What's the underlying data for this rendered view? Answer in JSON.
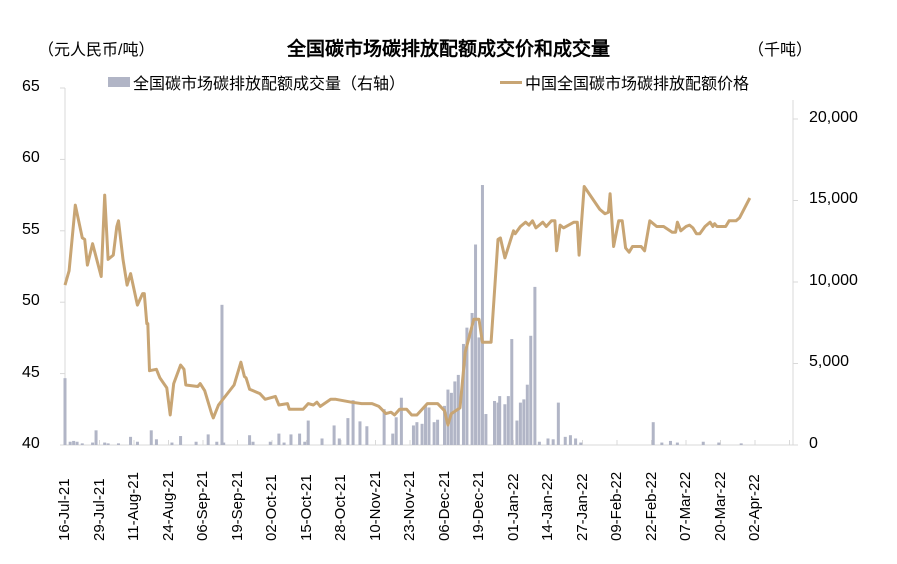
{
  "title": "全国碳市场碳排放配额成交价和成交量",
  "unit_left": "（元人民币/吨）",
  "unit_right": "（千吨）",
  "legend": {
    "bar": "全国碳市场碳排放配额成交量（右轴）",
    "line": "中国全国碳市场碳排放配额价格"
  },
  "colors": {
    "bar": "#b1b5c6",
    "line": "#c8a574",
    "axis": "#d9d9d9"
  },
  "left_axis": {
    "ticks": [
      "65",
      "60",
      "55",
      "50",
      "45",
      "40"
    ]
  },
  "right_axis": {
    "ticks": [
      "20,000",
      "15,000",
      "10,000",
      "5,000",
      "0"
    ]
  },
  "x_axis": {
    "ticks": [
      "16-Jul-21",
      "29-Jul-21",
      "11-Aug-21",
      "24-Aug-21",
      "06-Sep-21",
      "19-Sep-21",
      "02-Oct-21",
      "15-Oct-21",
      "28-Oct-21",
      "10-Nov-21",
      "23-Nov-21",
      "06-Dec-21",
      "19-Dec-21",
      "01-Jan-22",
      "14-Jan-22",
      "27-Jan-22",
      "09-Feb-22",
      "22-Feb-22",
      "07-Mar-22",
      "20-Mar-22",
      "02-Apr-22"
    ]
  },
  "chart_data": {
    "type": "bar+line",
    "title": "全国碳市场碳排放配额成交价和成交量",
    "ylabel_left": "元人民币/吨",
    "ylabel_right": "千吨",
    "ylim_left": [
      40,
      65
    ],
    "ylim_right": [
      0,
      20000
    ],
    "grid": false,
    "legend_position": "top",
    "categories": [
      "16-Jul-21",
      "29-Jul-21",
      "11-Aug-21",
      "24-Aug-21",
      "06-Sep-21",
      "19-Sep-21",
      "02-Oct-21",
      "15-Oct-21",
      "28-Oct-21",
      "10-Nov-21",
      "23-Nov-21",
      "06-Dec-21",
      "19-Dec-21",
      "01-Jan-22",
      "14-Jan-22",
      "27-Jan-22",
      "09-Feb-22",
      "22-Feb-22",
      "07-Mar-22",
      "20-Mar-22",
      "02-Apr-22"
    ],
    "series": [
      {
        "name": "中国全国碳市场碳排放配额价格",
        "type": "line",
        "axis": "left",
        "points": [
          [
            0,
            51.2
          ],
          [
            0.12,
            52.2
          ],
          [
            0.3,
            56.8
          ],
          [
            0.5,
            54.5
          ],
          [
            0.57,
            54.4
          ],
          [
            0.65,
            52.6
          ],
          [
            0.8,
            54.1
          ],
          [
            1.05,
            51.8
          ],
          [
            1.15,
            57.5
          ],
          [
            1.25,
            53.0
          ],
          [
            1.4,
            53.3
          ],
          [
            1.5,
            55.3
          ],
          [
            1.55,
            55.7
          ],
          [
            1.68,
            53.0
          ],
          [
            1.8,
            51.2
          ],
          [
            1.9,
            52.0
          ],
          [
            2.1,
            49.8
          ],
          [
            2.25,
            50.6
          ],
          [
            2.3,
            50.6
          ],
          [
            2.37,
            48.5
          ],
          [
            2.4,
            48.5
          ],
          [
            2.45,
            45.2
          ],
          [
            2.65,
            45.3
          ],
          [
            2.75,
            44.7
          ],
          [
            2.95,
            44.0
          ],
          [
            3.05,
            42.1
          ],
          [
            3.15,
            44.3
          ],
          [
            3.35,
            45.6
          ],
          [
            3.45,
            45.3
          ],
          [
            3.5,
            44.2
          ],
          [
            3.85,
            44.1
          ],
          [
            3.92,
            44.3
          ],
          [
            4.05,
            43.8
          ],
          [
            4.25,
            42.2
          ],
          [
            4.3,
            41.9
          ],
          [
            4.45,
            42.8
          ],
          [
            4.9,
            44.2
          ],
          [
            5.1,
            45.8
          ],
          [
            5.2,
            44.8
          ],
          [
            5.25,
            44.7
          ],
          [
            5.35,
            43.9
          ],
          [
            5.65,
            43.6
          ],
          [
            5.8,
            43.2
          ],
          [
            6.1,
            43.4
          ],
          [
            6.2,
            42.8
          ],
          [
            6.45,
            42.9
          ],
          [
            6.5,
            42.5
          ],
          [
            6.9,
            42.5
          ],
          [
            7.05,
            42.9
          ],
          [
            7.2,
            42.8
          ],
          [
            7.3,
            43.0
          ],
          [
            7.4,
            42.7
          ],
          [
            7.7,
            43.2
          ],
          [
            7.85,
            43.2
          ],
          [
            8.3,
            43.0
          ],
          [
            8.6,
            42.9
          ],
          [
            8.9,
            42.9
          ],
          [
            9.1,
            42.7
          ],
          [
            9.3,
            42.2
          ],
          [
            9.45,
            42.3
          ],
          [
            9.55,
            42.1
          ],
          [
            9.7,
            42.5
          ],
          [
            9.9,
            42.5
          ],
          [
            10.05,
            42.1
          ],
          [
            10.2,
            42.1
          ],
          [
            10.5,
            42.9
          ],
          [
            10.8,
            42.9
          ],
          [
            11.0,
            42.4
          ],
          [
            11.1,
            41.4
          ],
          [
            11.2,
            42.2
          ],
          [
            11.45,
            42.6
          ],
          [
            11.6,
            46.5
          ],
          [
            11.85,
            48.8
          ],
          [
            12.0,
            48.8
          ],
          [
            12.1,
            47.2
          ],
          [
            12.35,
            47.2
          ],
          [
            12.55,
            54.4
          ],
          [
            12.62,
            54.5
          ],
          [
            12.75,
            53.1
          ],
          [
            13.0,
            55.0
          ],
          [
            13.05,
            54.8
          ],
          [
            13.2,
            55.3
          ],
          [
            13.35,
            55.6
          ],
          [
            13.45,
            55.4
          ],
          [
            13.55,
            55.7
          ],
          [
            13.65,
            55.2
          ],
          [
            13.7,
            55.3
          ],
          [
            13.85,
            55.6
          ],
          [
            13.95,
            55.3
          ],
          [
            14.1,
            55.7
          ],
          [
            14.2,
            55.7
          ],
          [
            14.25,
            53.6
          ],
          [
            14.35,
            55.4
          ],
          [
            14.45,
            55.2
          ],
          [
            14.6,
            55.4
          ],
          [
            14.75,
            55.6
          ],
          [
            14.85,
            55.6
          ],
          [
            14.9,
            53.3
          ],
          [
            15.05,
            58.1
          ],
          [
            15.5,
            56.5
          ],
          [
            15.65,
            56.2
          ],
          [
            15.75,
            56.3
          ],
          [
            15.8,
            57.6
          ],
          [
            15.9,
            53.9
          ],
          [
            16.05,
            55.7
          ],
          [
            16.15,
            55.7
          ],
          [
            16.25,
            53.8
          ],
          [
            16.35,
            53.5
          ],
          [
            16.45,
            53.9
          ],
          [
            16.7,
            53.9
          ],
          [
            16.8,
            53.6
          ],
          [
            16.95,
            55.7
          ],
          [
            17.15,
            55.3
          ],
          [
            17.35,
            55.3
          ],
          [
            17.6,
            54.9
          ],
          [
            17.7,
            54.9
          ],
          [
            17.75,
            55.6
          ],
          [
            17.85,
            55.0
          ],
          [
            18.0,
            55.3
          ],
          [
            18.1,
            55.4
          ],
          [
            18.2,
            55.2
          ],
          [
            18.3,
            54.8
          ],
          [
            18.4,
            54.8
          ],
          [
            18.55,
            55.3
          ],
          [
            18.7,
            55.6
          ],
          [
            18.78,
            55.3
          ],
          [
            18.83,
            55.5
          ],
          [
            18.9,
            55.3
          ],
          [
            19.15,
            55.3
          ],
          [
            19.25,
            55.7
          ],
          [
            19.45,
            55.7
          ],
          [
            19.55,
            55.9
          ],
          [
            19.85,
            57.3
          ]
        ]
      },
      {
        "name": "全国碳市场碳排放配额成交量（右轴）",
        "type": "bar",
        "axis": "right",
        "points": [
          [
            0.0,
            4100
          ],
          [
            0.15,
            200
          ],
          [
            0.25,
            250
          ],
          [
            0.35,
            200
          ],
          [
            0.5,
            100
          ],
          [
            0.8,
            150
          ],
          [
            0.9,
            900
          ],
          [
            1.15,
            150
          ],
          [
            1.25,
            100
          ],
          [
            1.55,
            100
          ],
          [
            1.9,
            500
          ],
          [
            2.1,
            200
          ],
          [
            2.5,
            900
          ],
          [
            2.65,
            350
          ],
          [
            3.1,
            150
          ],
          [
            3.35,
            550
          ],
          [
            3.8,
            200
          ],
          [
            4.15,
            650
          ],
          [
            4.4,
            200
          ],
          [
            4.55,
            8600
          ],
          [
            4.6,
            150
          ],
          [
            5.35,
            600
          ],
          [
            5.45,
            200
          ],
          [
            5.95,
            200
          ],
          [
            6.2,
            700
          ],
          [
            6.35,
            150
          ],
          [
            6.55,
            650
          ],
          [
            6.8,
            700
          ],
          [
            6.95,
            200
          ],
          [
            7.05,
            1500
          ],
          [
            7.45,
            400
          ],
          [
            7.8,
            1200
          ],
          [
            7.95,
            400
          ],
          [
            8.2,
            1650
          ],
          [
            8.35,
            2750
          ],
          [
            8.55,
            1450
          ],
          [
            8.75,
            1150
          ],
          [
            9.25,
            2200
          ],
          [
            9.5,
            700
          ],
          [
            9.6,
            1700
          ],
          [
            9.75,
            2900
          ],
          [
            10.1,
            1200
          ],
          [
            10.2,
            1400
          ],
          [
            10.35,
            1300
          ],
          [
            10.45,
            2400
          ],
          [
            10.55,
            2300
          ],
          [
            10.7,
            1400
          ],
          [
            10.8,
            1550
          ],
          [
            11.0,
            2400
          ],
          [
            11.1,
            3400
          ],
          [
            11.2,
            3200
          ],
          [
            11.3,
            3900
          ],
          [
            11.4,
            4300
          ],
          [
            11.55,
            6200
          ],
          [
            11.65,
            7200
          ],
          [
            11.8,
            8100
          ],
          [
            11.9,
            12300
          ],
          [
            12.0,
            6600
          ],
          [
            12.1,
            15950
          ],
          [
            12.2,
            1900
          ],
          [
            12.45,
            2700
          ],
          [
            12.55,
            2600
          ],
          [
            12.6,
            3000
          ],
          [
            12.75,
            2500
          ],
          [
            12.85,
            3000
          ],
          [
            12.95,
            6500
          ],
          [
            13.1,
            1500
          ],
          [
            13.2,
            2600
          ],
          [
            13.3,
            2800
          ],
          [
            13.4,
            3700
          ],
          [
            13.5,
            6700
          ],
          [
            13.62,
            9700
          ],
          [
            13.75,
            200
          ],
          [
            14.0,
            400
          ],
          [
            14.15,
            350
          ],
          [
            14.3,
            2600
          ],
          [
            14.5,
            500
          ],
          [
            14.65,
            600
          ],
          [
            14.8,
            400
          ],
          [
            14.95,
            150
          ],
          [
            17.05,
            1400
          ],
          [
            17.3,
            150
          ],
          [
            17.55,
            250
          ],
          [
            17.75,
            150
          ],
          [
            18.5,
            200
          ],
          [
            18.95,
            150
          ],
          [
            19.6,
            100
          ]
        ]
      }
    ]
  }
}
